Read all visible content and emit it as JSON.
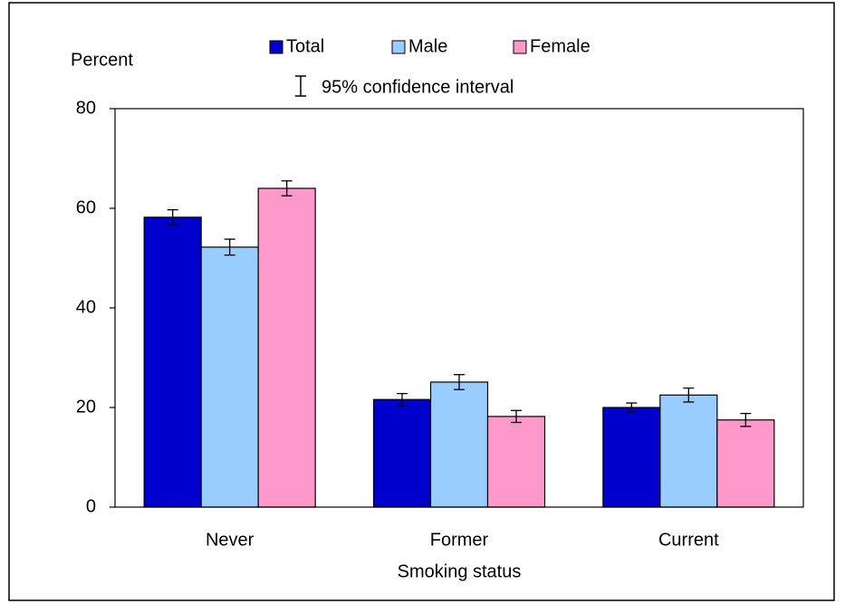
{
  "chart_data": {
    "type": "bar",
    "y_label": "Percent",
    "x_label": "Smoking status",
    "ci_label": "95% confidence interval",
    "categories": [
      "Never",
      "Former",
      "Current"
    ],
    "series": [
      {
        "name": "Total",
        "color": "#0000cc",
        "values": [
          58.2,
          21.6,
          20.0
        ],
        "errors": [
          1.5,
          1.2,
          0.9
        ]
      },
      {
        "name": "Male",
        "color": "#99ccff",
        "values": [
          52.2,
          25.1,
          22.5
        ],
        "errors": [
          1.6,
          1.5,
          1.4
        ]
      },
      {
        "name": "Female",
        "color": "#ff99cc",
        "values": [
          64.0,
          18.2,
          17.5
        ],
        "errors": [
          1.5,
          1.2,
          1.3
        ]
      }
    ],
    "ylim": [
      0,
      80
    ],
    "yticks": [
      0,
      20,
      40,
      60,
      80
    ],
    "grid": false
  }
}
